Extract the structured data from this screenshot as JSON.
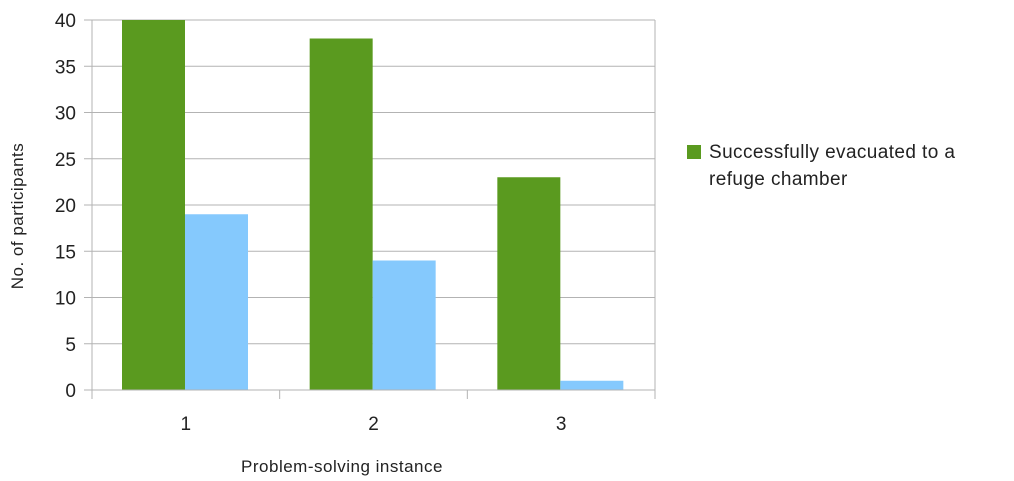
{
  "chart_data": {
    "type": "bar",
    "categories": [
      "1",
      "2",
      "3"
    ],
    "series": [
      {
        "name": "Successfully evacuated to a refuge chamber",
        "color": "#5a9a1f",
        "values": [
          41,
          38,
          23
        ]
      },
      {
        "color": "#85c9fd",
        "values": [
          19,
          14,
          1
        ]
      }
    ],
    "xlabel": "Problem-solving instance",
    "ylabel": "No. of participants",
    "ylim": [
      0,
      40
    ],
    "yticks": [
      0,
      5,
      10,
      15,
      20,
      25,
      30,
      35,
      40
    ],
    "grid": true,
    "legend_position": "right"
  }
}
